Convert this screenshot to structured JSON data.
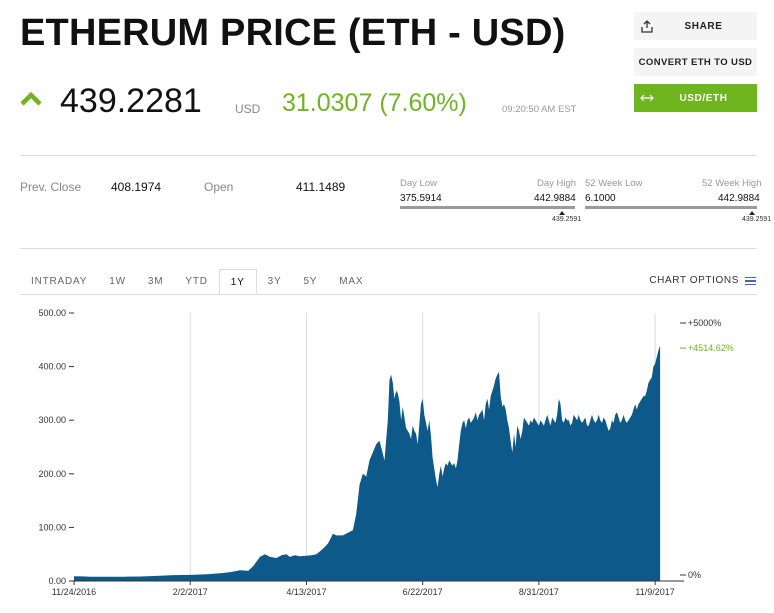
{
  "header": {
    "title": "ETHERUM PRICE (ETH - USD)",
    "share_label": "SHARE",
    "convert_label": "CONVERT ETH TO USD",
    "usdeth_label": "USD/ETH"
  },
  "quote": {
    "price": "439.2281",
    "currency": "USD",
    "change": "31.0307 (7.60%)",
    "time": "09:20:50 AM EST",
    "up_color": "#6fb51f"
  },
  "stats": {
    "prev_close_label": "Prev. Close",
    "prev_close": "408.1974",
    "open_label": "Open",
    "open": "411.1489",
    "day_low_label": "Day Low",
    "day_low": "375.5914",
    "day_high_label": "Day High",
    "day_high": "442.9884",
    "day_marker": "439.2591",
    "wk52_low_label": "52 Week Low",
    "wk52_low": "6.1000",
    "wk52_high_label": "52 Week High",
    "wk52_high": "442.9884",
    "wk52_marker": "439.2591"
  },
  "tabs": [
    {
      "label": "INTRADAY",
      "active": false
    },
    {
      "label": "1W",
      "active": false
    },
    {
      "label": "3M",
      "active": false
    },
    {
      "label": "YTD",
      "active": false
    },
    {
      "label": "1Y",
      "active": true
    },
    {
      "label": "3Y",
      "active": false
    },
    {
      "label": "5Y",
      "active": false
    },
    {
      "label": "MAX",
      "active": false
    }
  ],
  "chart_options_label": "CHART OPTIONS",
  "chart_data": {
    "type": "area",
    "fill_color": "#0d5a8a",
    "ylim": [
      0,
      500
    ],
    "yticks": [
      "500.00",
      "400.00",
      "300.00",
      "200.00",
      "100.00",
      "0.00"
    ],
    "ytick_values": [
      500,
      400,
      300,
      200,
      100,
      0
    ],
    "xticks": [
      "11/24/2016",
      "2/2/2017",
      "4/13/2017",
      "6/22/2017",
      "8/31/2017",
      "11/9/2017"
    ],
    "right_labels": [
      "+5000%",
      "+4514.62%",
      "0%"
    ],
    "right_label_values": [
      5000,
      4514.62,
      0
    ],
    "right_highlight_color": "#6fb51f",
    "x_days_total": 365,
    "xtick_days": [
      0,
      70,
      140,
      210,
      280,
      350
    ],
    "grid": "vertical",
    "series": [
      {
        "points": [
          [
            0,
            9
          ],
          [
            5,
            8.5
          ],
          [
            10,
            8
          ],
          [
            20,
            7.8
          ],
          [
            30,
            8
          ],
          [
            40,
            8.4
          ],
          [
            50,
            9.5
          ],
          [
            60,
            11
          ],
          [
            70,
            11.3
          ],
          [
            80,
            12.5
          ],
          [
            90,
            15
          ],
          [
            95,
            17
          ],
          [
            100,
            20
          ],
          [
            105,
            19
          ],
          [
            108,
            28
          ],
          [
            112,
            45
          ],
          [
            115,
            50
          ],
          [
            118,
            45
          ],
          [
            122,
            43
          ],
          [
            125,
            48
          ],
          [
            128,
            50
          ],
          [
            130,
            45
          ],
          [
            133,
            48
          ],
          [
            136,
            46
          ],
          [
            140,
            47
          ],
          [
            143,
            48
          ],
          [
            146,
            50
          ],
          [
            150,
            60
          ],
          [
            153,
            70
          ],
          [
            156,
            88
          ],
          [
            158,
            85
          ],
          [
            162,
            85
          ],
          [
            165,
            90
          ],
          [
            168,
            95
          ],
          [
            170,
            125
          ],
          [
            172,
            180
          ],
          [
            174,
            200
          ],
          [
            176,
            195
          ],
          [
            178,
            225
          ],
          [
            180,
            240
          ],
          [
            182,
            255
          ],
          [
            184,
            262
          ],
          [
            187,
            225
          ],
          [
            189,
            300
          ],
          [
            190,
            375
          ],
          [
            191,
            385
          ],
          [
            192,
            370
          ],
          [
            193,
            340
          ],
          [
            194,
            355
          ],
          [
            195,
            350
          ],
          [
            196,
            335
          ],
          [
            197,
            300
          ],
          [
            198,
            325
          ],
          [
            199,
            305
          ],
          [
            200,
            285
          ],
          [
            202,
            275
          ],
          [
            203,
            265
          ],
          [
            204,
            290
          ],
          [
            205,
            280
          ],
          [
            206,
            275
          ],
          [
            207,
            255
          ],
          [
            209,
            330
          ],
          [
            210,
            340
          ],
          [
            211,
            310
          ],
          [
            212,
            295
          ],
          [
            213,
            280
          ],
          [
            214,
            300
          ],
          [
            215,
            270
          ],
          [
            216,
            230
          ],
          [
            218,
            190
          ],
          [
            219,
            175
          ],
          [
            220,
            200
          ],
          [
            221,
            215
          ],
          [
            222,
            195
          ],
          [
            223,
            210
          ],
          [
            224,
            220
          ],
          [
            225,
            215
          ],
          [
            226,
            225
          ],
          [
            227,
            220
          ],
          [
            228,
            215
          ],
          [
            229,
            220
          ],
          [
            230,
            210
          ],
          [
            231,
            225
          ],
          [
            232,
            255
          ],
          [
            233,
            280
          ],
          [
            234,
            295
          ],
          [
            235,
            300
          ],
          [
            236,
            285
          ],
          [
            237,
            300
          ],
          [
            238,
            305
          ],
          [
            239,
            295
          ],
          [
            240,
            300
          ],
          [
            241,
            305
          ],
          [
            242,
            315
          ],
          [
            243,
            300
          ],
          [
            244,
            310
          ],
          [
            245,
            315
          ],
          [
            246,
            320
          ],
          [
            247,
            300
          ],
          [
            248,
            330
          ],
          [
            249,
            340
          ],
          [
            250,
            320
          ],
          [
            251,
            345
          ],
          [
            252,
            355
          ],
          [
            253,
            365
          ],
          [
            254,
            378
          ],
          [
            255,
            385
          ],
          [
            256,
            390
          ],
          [
            257,
            345
          ],
          [
            258,
            325
          ],
          [
            259,
            330
          ],
          [
            260,
            320
          ],
          [
            261,
            300
          ],
          [
            262,
            285
          ],
          [
            263,
            260
          ],
          [
            264,
            240
          ],
          [
            265,
            275
          ],
          [
            266,
            250
          ],
          [
            267,
            290
          ],
          [
            268,
            280
          ],
          [
            269,
            265
          ],
          [
            270,
            280
          ],
          [
            271,
            305
          ],
          [
            272,
            300
          ],
          [
            273,
            295
          ],
          [
            274,
            290
          ],
          [
            275,
            300
          ],
          [
            276,
            295
          ],
          [
            277,
            305
          ],
          [
            278,
            300
          ],
          [
            279,
            295
          ],
          [
            280,
            290
          ],
          [
            281,
            300
          ],
          [
            282,
            295
          ],
          [
            283,
            290
          ],
          [
            284,
            300
          ],
          [
            285,
            310
          ],
          [
            286,
            300
          ],
          [
            287,
            290
          ],
          [
            288,
            305
          ],
          [
            289,
            300
          ],
          [
            290,
            295
          ],
          [
            291,
            310
          ],
          [
            292,
            340
          ],
          [
            293,
            330
          ],
          [
            294,
            300
          ],
          [
            295,
            295
          ],
          [
            296,
            305
          ],
          [
            297,
            300
          ],
          [
            298,
            300
          ],
          [
            299,
            290
          ],
          [
            300,
            295
          ],
          [
            301,
            310
          ],
          [
            302,
            305
          ],
          [
            303,
            300
          ],
          [
            304,
            310
          ],
          [
            305,
            300
          ],
          [
            306,
            295
          ],
          [
            307,
            300
          ],
          [
            308,
            305
          ],
          [
            309,
            290
          ],
          [
            310,
            290
          ],
          [
            311,
            300
          ],
          [
            312,
            310
          ],
          [
            313,
            300
          ],
          [
            314,
            295
          ],
          [
            315,
            300
          ],
          [
            316,
            310
          ],
          [
            317,
            300
          ],
          [
            318,
            295
          ],
          [
            319,
            305
          ],
          [
            320,
            300
          ],
          [
            321,
            290
          ],
          [
            322,
            280
          ],
          [
            323,
            285
          ],
          [
            324,
            300
          ],
          [
            325,
            295
          ],
          [
            326,
            310
          ],
          [
            327,
            315
          ],
          [
            328,
            305
          ],
          [
            329,
            295
          ],
          [
            330,
            300
          ],
          [
            331,
            310
          ],
          [
            332,
            300
          ],
          [
            333,
            295
          ],
          [
            334,
            300
          ],
          [
            335,
            305
          ],
          [
            336,
            310
          ],
          [
            337,
            320
          ],
          [
            338,
            330
          ],
          [
            339,
            320
          ],
          [
            340,
            330
          ],
          [
            341,
            335
          ],
          [
            342,
            340
          ],
          [
            343,
            345
          ],
          [
            344,
            345
          ],
          [
            345,
            355
          ],
          [
            346,
            370
          ],
          [
            347,
            375
          ],
          [
            348,
            380
          ],
          [
            349,
            400
          ],
          [
            350,
            405
          ],
          [
            352,
            430
          ],
          [
            353,
            439
          ]
        ]
      }
    ]
  }
}
